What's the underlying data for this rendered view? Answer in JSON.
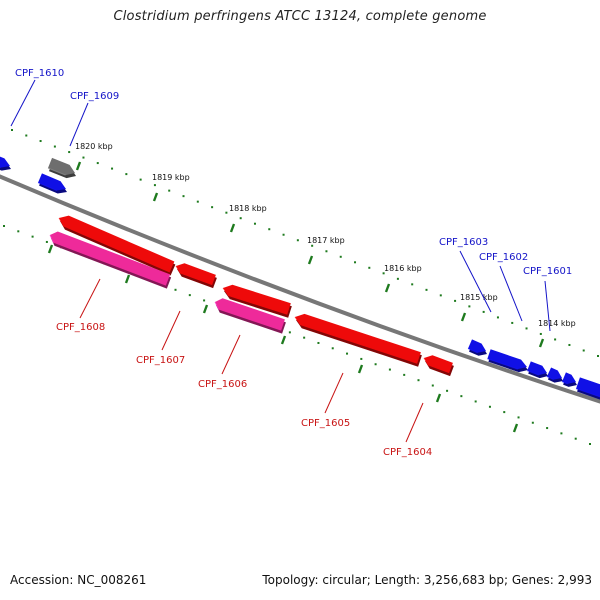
{
  "title": "Clostridium perfringens ATCC 13124, complete genome",
  "accession": "Accession: NC_008261",
  "topology": "Topology: circular; Length: 3,256,683 bp; Genes: 2,993",
  "colors": {
    "forward_gene": "#1010e6",
    "reverse_gene": "#ee0a0a",
    "pink_gene": "#ee2a9a",
    "gray_gene": "#6e6e6e",
    "backbone": "#777777",
    "tick": "#1e7a1e",
    "forward_label": "#1414c8",
    "reverse_label": "#c81414"
  },
  "kbp_ticks": [
    {
      "label": "1820 kbp"
    },
    {
      "label": "1819 kbp"
    },
    {
      "label": "1818 kbp"
    },
    {
      "label": "1817 kbp"
    },
    {
      "label": "1816 kbp"
    },
    {
      "label": "1815 kbp"
    },
    {
      "label": "1814 kbp"
    }
  ],
  "genes": [
    {
      "label": "CPF_1610",
      "strand": "forward"
    },
    {
      "label": "CPF_1609",
      "strand": "forward"
    },
    {
      "label": "CPF_1603",
      "strand": "forward"
    },
    {
      "label": "CPF_1602",
      "strand": "forward"
    },
    {
      "label": "CPF_1601",
      "strand": "forward"
    },
    {
      "label": "CPF_1608",
      "strand": "reverse"
    },
    {
      "label": "CPF_1607",
      "strand": "reverse"
    },
    {
      "label": "CPF_1606",
      "strand": "reverse"
    },
    {
      "label": "CPF_1605",
      "strand": "reverse"
    },
    {
      "label": "CPF_1604",
      "strand": "reverse"
    }
  ]
}
